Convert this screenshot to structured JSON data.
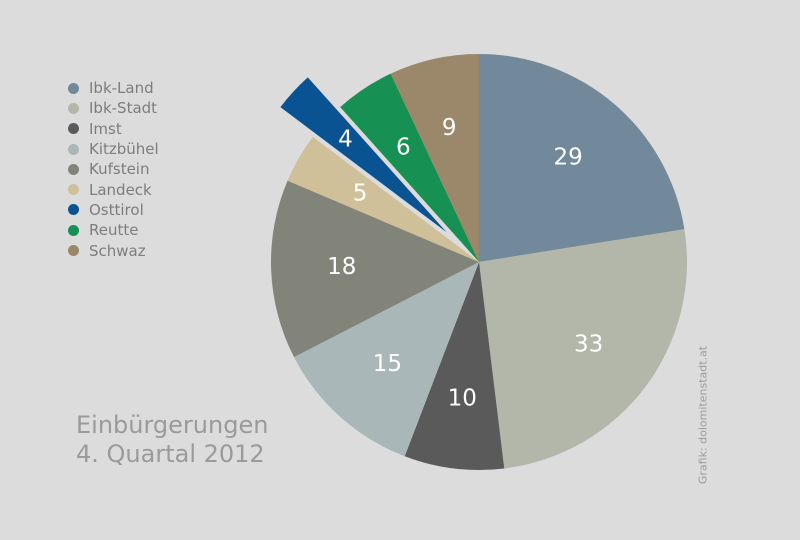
{
  "chart_data": {
    "type": "pie",
    "categories": [
      "Ibk-Land",
      "Ibk-Stadt",
      "Imst",
      "Kitzbühel",
      "Kufstein",
      "Landeck",
      "Osttirol",
      "Reutte",
      "Schwaz"
    ],
    "values": [
      29,
      33,
      10,
      15,
      18,
      5,
      4,
      6,
      9
    ],
    "colors": [
      "#71899a",
      "#b3b7a9",
      "#5a5a5a",
      "#a9b7b9",
      "#838479",
      "#cfc099",
      "#0a5393",
      "#179153",
      "#9b8769"
    ],
    "exploded": "Osttirol",
    "slice_labels": [
      "29",
      "33",
      "10",
      "15",
      "18",
      "5",
      "4",
      "6",
      "9"
    ],
    "title": "Einbürgerungen",
    "subtitle": "4. Quartal 2012",
    "legend_position": "left"
  },
  "credit": "Grafik: dolomitenstadt.at"
}
